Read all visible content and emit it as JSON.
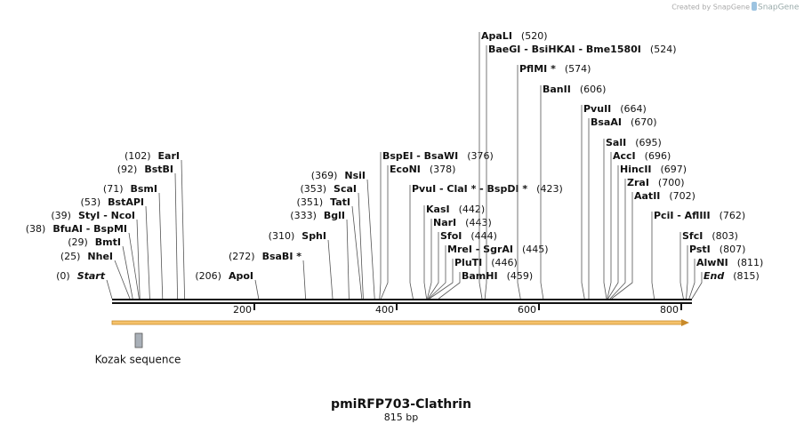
{
  "header": {
    "credit": "Created by SnapGene"
  },
  "title": "pmiRFP703-Clathrin",
  "length": "815 bp",
  "scale": {
    "ticks": [
      200,
      400,
      600,
      800
    ]
  },
  "feature": {
    "name": "Kozak sequence"
  },
  "sites": [
    {
      "name": "Start",
      "position": 0,
      "position_label": "(0)"
    },
    {
      "name": "NheI",
      "position": 25,
      "position_label": "(25)"
    },
    {
      "name": "BmtI",
      "position": 29,
      "position_label": "(29)"
    },
    {
      "name": "BfuAI - BspMI",
      "position": 38,
      "position_label": "(38)"
    },
    {
      "name": "StyI - NcoI",
      "position": 39,
      "position_label": "(39)"
    },
    {
      "name": "BstAPI",
      "position": 53,
      "position_label": "(53)"
    },
    {
      "name": "BsmI",
      "position": 71,
      "position_label": "(71)"
    },
    {
      "name": "BstBI",
      "position": 92,
      "position_label": "(92)"
    },
    {
      "name": "EarI",
      "position": 102,
      "position_label": "(102)"
    },
    {
      "name": "ApoI",
      "position": 206,
      "position_label": "(206)"
    },
    {
      "name": "BsaBI *",
      "position": 272,
      "position_label": "(272)"
    },
    {
      "name": "SphI",
      "position": 310,
      "position_label": "(310)"
    },
    {
      "name": "BglI",
      "position": 333,
      "position_label": "(333)"
    },
    {
      "name": "TatI",
      "position": 351,
      "position_label": "(351)"
    },
    {
      "name": "ScaI",
      "position": 353,
      "position_label": "(353)"
    },
    {
      "name": "NsiI",
      "position": 369,
      "position_label": "(369)"
    },
    {
      "name": "BspEI - BsaWI",
      "position": 376,
      "position_label": "(376)"
    },
    {
      "name": "EcoNI",
      "position": 378,
      "position_label": "(378)"
    },
    {
      "name": "PvuI - ClaI * - BspDI *",
      "position": 423,
      "position_label": "(423)"
    },
    {
      "name": "KasI",
      "position": 442,
      "position_label": "(442)"
    },
    {
      "name": "NarI",
      "position": 443,
      "position_label": "(443)"
    },
    {
      "name": "SfoI",
      "position": 444,
      "position_label": "(444)"
    },
    {
      "name": "MreI - SgrAI",
      "position": 445,
      "position_label": "(445)"
    },
    {
      "name": "PluTI",
      "position": 446,
      "position_label": "(446)"
    },
    {
      "name": "BamHI",
      "position": 459,
      "position_label": "(459)"
    },
    {
      "name": "ApaLI",
      "position": 520,
      "position_label": "(520)"
    },
    {
      "name": "BaeGI - BsiHKAI - Bme1580I",
      "position": 524,
      "position_label": "(524)"
    },
    {
      "name": "PflMI *",
      "position": 574,
      "position_label": "(574)"
    },
    {
      "name": "BanII",
      "position": 606,
      "position_label": "(606)"
    },
    {
      "name": "PvuII",
      "position": 664,
      "position_label": "(664)"
    },
    {
      "name": "BsaAI",
      "position": 670,
      "position_label": "(670)"
    },
    {
      "name": "SalI",
      "position": 695,
      "position_label": "(695)"
    },
    {
      "name": "AccI",
      "position": 696,
      "position_label": "(696)"
    },
    {
      "name": "HincII",
      "position": 697,
      "position_label": "(697)"
    },
    {
      "name": "ZraI",
      "position": 700,
      "position_label": "(700)"
    },
    {
      "name": "AatII",
      "position": 702,
      "position_label": "(702)"
    },
    {
      "name": "PciI - AflIII",
      "position": 762,
      "position_label": "(762)"
    },
    {
      "name": "SfcI",
      "position": 803,
      "position_label": "(803)"
    },
    {
      "name": "PstI",
      "position": 807,
      "position_label": "(807)"
    },
    {
      "name": "AlwNI",
      "position": 811,
      "position_label": "(811)"
    },
    {
      "name": "End",
      "position": 815,
      "position_label": "(815)"
    }
  ]
}
